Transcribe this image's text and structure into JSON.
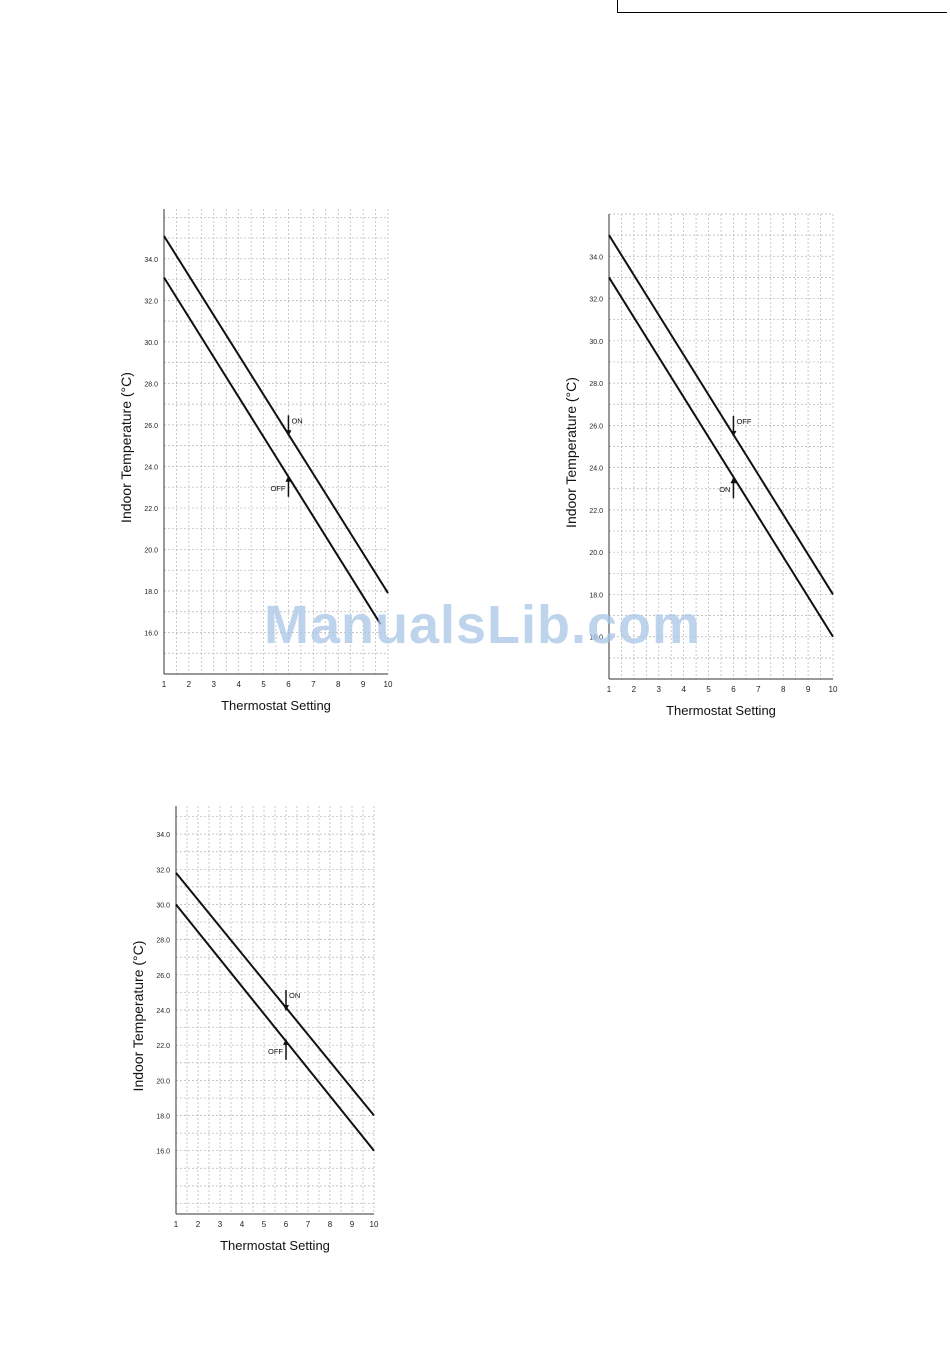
{
  "watermark": "ManualsLib.com",
  "chart_data": [
    {
      "type": "line",
      "title": "",
      "xlabel": "Thermostat Setting",
      "ylabel": "Indoor Temperature (°C)",
      "xlim": [
        1,
        10
      ],
      "ylim": [
        14.0,
        36.4
      ],
      "grid": true,
      "x_ticks": [
        "1",
        "2",
        "3",
        "4",
        "5",
        "6",
        "7",
        "8",
        "9",
        "10"
      ],
      "y_ticks": [
        "16.0",
        "18.0",
        "20.0",
        "22.0",
        "24.0",
        "26.0",
        "28.0",
        "30.0",
        "32.0",
        "34.0"
      ],
      "series": [
        {
          "x": [
            1,
            10
          ],
          "y": [
            35.1,
            17.9
          ]
        },
        {
          "x": [
            1,
            9.7
          ],
          "y": [
            33.1,
            16.4
          ]
        }
      ],
      "annotations": [
        {
          "text": "ON",
          "x": 6,
          "y": 25.5,
          "arrow": "down"
        },
        {
          "text": "OFF",
          "x": 6,
          "y": 23.5,
          "arrow": "up"
        }
      ]
    },
    {
      "type": "line",
      "title": "",
      "xlabel": "Thermostat Setting",
      "ylabel": "Indoor Temperature (°C)",
      "xlim": [
        1,
        10
      ],
      "ylim": [
        14.0,
        36.0
      ],
      "grid": true,
      "x_ticks": [
        "1",
        "2",
        "3",
        "4",
        "5",
        "6",
        "7",
        "8",
        "9",
        "10"
      ],
      "y_ticks": [
        "16.0",
        "18.0",
        "20.0",
        "22.0",
        "24.0",
        "26.0",
        "28.0",
        "30.0",
        "32.0",
        "34.0"
      ],
      "series": [
        {
          "x": [
            1,
            10
          ],
          "y": [
            35.0,
            18.0
          ]
        },
        {
          "x": [
            1,
            10
          ],
          "y": [
            33.0,
            16.0
          ]
        }
      ],
      "annotations": [
        {
          "text": "OFF",
          "x": 6,
          "y": 25.5,
          "arrow": "down"
        },
        {
          "text": "ON",
          "x": 6,
          "y": 23.5,
          "arrow": "up"
        }
      ]
    },
    {
      "type": "line",
      "title": "",
      "xlabel": "Thermostat Setting",
      "ylabel": "Indoor Temperature (°C)",
      "xlim": [
        1,
        10
      ],
      "ylim": [
        12.4,
        35.6
      ],
      "grid": true,
      "x_ticks": [
        "1",
        "2",
        "3",
        "4",
        "5",
        "6",
        "7",
        "8",
        "9",
        "10"
      ],
      "y_ticks": [
        "16.0",
        "18.0",
        "20.0",
        "22.0",
        "24.0",
        "26.0",
        "28.0",
        "30.0",
        "32.0",
        "34.0"
      ],
      "series": [
        {
          "x": [
            1,
            10
          ],
          "y": [
            31.8,
            18.0
          ]
        },
        {
          "x": [
            1,
            10
          ],
          "y": [
            30.0,
            16.0
          ]
        }
      ],
      "annotations": [
        {
          "text": "ON",
          "x": 6,
          "y": 24.0,
          "arrow": "down"
        },
        {
          "text": "OFF",
          "x": 6,
          "y": 22.3,
          "arrow": "up"
        }
      ]
    }
  ]
}
